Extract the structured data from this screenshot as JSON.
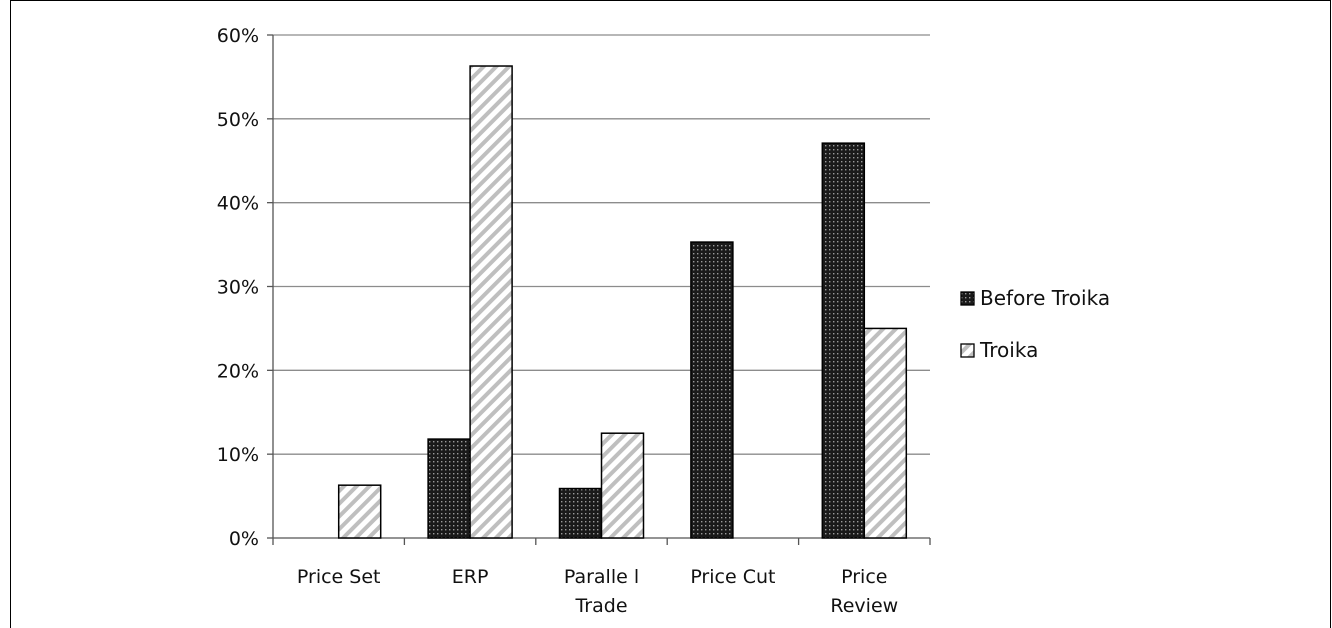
{
  "chart_data": {
    "type": "bar",
    "categories": [
      [
        "Price Set"
      ],
      [
        "ERP"
      ],
      [
        "Paralle l",
        "Trade"
      ],
      [
        "Price Cut"
      ],
      [
        "Price",
        "Review"
      ]
    ],
    "series": [
      {
        "name": "Before Troika",
        "values": [
          0,
          11.8,
          5.9,
          35.3,
          47.1
        ],
        "pattern": "dots"
      },
      {
        "name": "Troika",
        "values": [
          6.3,
          56.3,
          12.5,
          0,
          25.0
        ],
        "pattern": "hatch"
      }
    ],
    "ylim": [
      0,
      60
    ],
    "yticks": [
      "0%",
      "10%",
      "20%",
      "30%",
      "40%",
      "50%",
      "60%"
    ],
    "grid": true,
    "legend_position": "right"
  }
}
